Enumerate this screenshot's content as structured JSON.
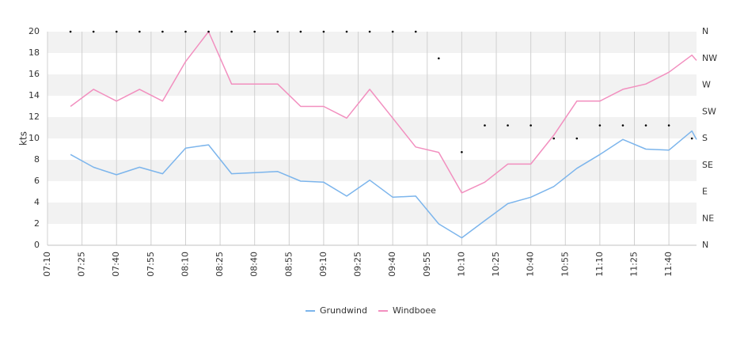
{
  "chart_data": {
    "type": "line",
    "ylabel": "kts",
    "ylim": [
      0,
      20
    ],
    "y_ticks": [
      "0",
      "2",
      "4",
      "6",
      "8",
      "10",
      "12",
      "14",
      "16",
      "18",
      "20"
    ],
    "right_axis": {
      "labels": [
        "N",
        "NE",
        "E",
        "SE",
        "S",
        "SW",
        "W",
        "NW",
        "N"
      ],
      "range": [
        0,
        360
      ],
      "name": ""
    },
    "x_tick_labels": [
      "07:10",
      "07:25",
      "07:40",
      "07:55",
      "08:10",
      "08:25",
      "08:40",
      "08:55",
      "09:10",
      "09:25",
      "09:40",
      "09:55",
      "10:10",
      "10:25",
      "10:40",
      "10:55",
      "11:10",
      "11:25",
      "11:40"
    ],
    "x_range": [
      "07:10",
      "11:52"
    ],
    "grid": true,
    "legend_position": "bottom",
    "times": [
      "07:20",
      "07:30",
      "07:40",
      "07:50",
      "08:00",
      "08:10",
      "08:20",
      "08:30",
      "08:40",
      "08:50",
      "09:00",
      "09:10",
      "09:20",
      "09:30",
      "09:40",
      "09:50",
      "10:00",
      "10:10",
      "10:20",
      "10:30",
      "10:40",
      "10:50",
      "11:00",
      "11:10",
      "11:20",
      "11:30",
      "11:40",
      "11:50",
      "11:52"
    ],
    "series": [
      {
        "name": "Grundwind",
        "color": "#7cb5ec",
        "values": [
          8.5,
          7.3,
          6.6,
          7.3,
          6.7,
          9.1,
          9.4,
          6.7,
          6.8,
          6.9,
          6.0,
          5.9,
          4.6,
          6.1,
          4.5,
          4.6,
          2.0,
          0.7,
          2.3,
          3.9,
          4.5,
          5.5,
          7.2,
          8.5,
          9.9,
          9.0,
          8.9,
          10.7,
          9.9
        ]
      },
      {
        "name": "Windboee",
        "color": "#f28fbf",
        "values": [
          13.0,
          14.6,
          13.5,
          14.6,
          13.5,
          17.2,
          20.0,
          15.1,
          15.1,
          15.1,
          13.0,
          13.0,
          11.9,
          14.6,
          11.9,
          9.2,
          8.7,
          4.9,
          5.9,
          7.6,
          7.6,
          10.3,
          13.5,
          13.5,
          14.6,
          15.1,
          16.2,
          17.8,
          17.3
        ]
      }
    ],
    "direction": {
      "color": "#000000",
      "times": [
        "07:20",
        "07:30",
        "07:40",
        "07:50",
        "08:00",
        "08:10",
        "08:20",
        "08:30",
        "08:40",
        "08:50",
        "09:00",
        "09:10",
        "09:20",
        "09:30",
        "09:40",
        "09:50",
        "10:00",
        "10:10",
        "10:20",
        "10:30",
        "10:40",
        "10:50",
        "11:00",
        "11:10",
        "11:20",
        "11:30",
        "11:40",
        "11:50"
      ],
      "degrees": [
        360,
        360,
        360,
        360,
        360,
        360,
        360,
        360,
        360,
        360,
        360,
        360,
        360,
        360,
        360,
        360,
        315,
        157,
        202,
        202,
        202,
        180,
        180,
        202,
        202,
        202,
        202,
        180
      ]
    }
  },
  "legend": {
    "items": [
      {
        "label": "Grundwind",
        "color": "#7cb5ec"
      },
      {
        "label": "Windboee",
        "color": "#f28fbf"
      }
    ]
  }
}
